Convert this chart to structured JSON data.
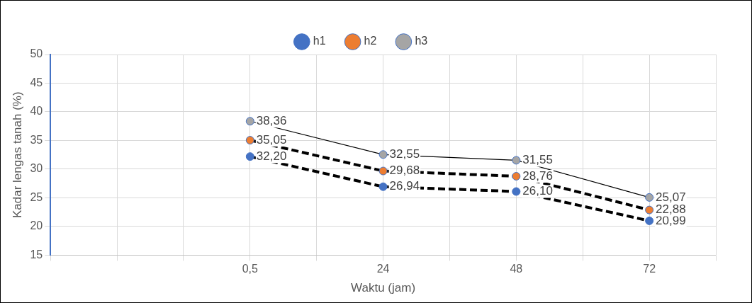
{
  "chart_data": {
    "type": "line",
    "xlabel": "Waktu (jam)",
    "ylabel": "Kadar lengas tanah (%)",
    "categories": [
      null,
      null,
      null,
      "0,5",
      null,
      "24",
      null,
      "48",
      null,
      "72",
      null
    ],
    "ylim": [
      15,
      50
    ],
    "yticks": [
      15,
      20,
      25,
      30,
      35,
      40,
      45,
      50
    ],
    "grid": true,
    "legend": "top",
    "marker": "circle",
    "series": [
      {
        "name": "h1",
        "color": "#4472c4",
        "line_style": "dashed",
        "values": [
          null,
          null,
          null,
          32.2,
          null,
          26.94,
          null,
          26.1,
          null,
          20.99,
          null
        ],
        "value_labels": [
          null,
          null,
          null,
          "32,20",
          null,
          "26,94",
          null,
          "26,10",
          null,
          "20,99",
          null
        ]
      },
      {
        "name": "h2",
        "color": "#ed7d31",
        "line_style": "dashed",
        "values": [
          null,
          null,
          null,
          35.05,
          null,
          29.68,
          null,
          28.76,
          null,
          22.88,
          null
        ],
        "value_labels": [
          null,
          null,
          null,
          "35,05",
          null,
          "29,68",
          null,
          "28,76",
          null,
          "22,88",
          null
        ]
      },
      {
        "name": "h3",
        "color": "#a5a5a5",
        "line_style": "solid",
        "values": [
          null,
          null,
          null,
          38.36,
          null,
          32.55,
          null,
          31.55,
          null,
          25.07,
          null
        ],
        "value_labels": [
          null,
          null,
          null,
          "38,36",
          null,
          "32,55",
          null,
          "31,55",
          null,
          "25,07",
          null
        ]
      }
    ]
  }
}
